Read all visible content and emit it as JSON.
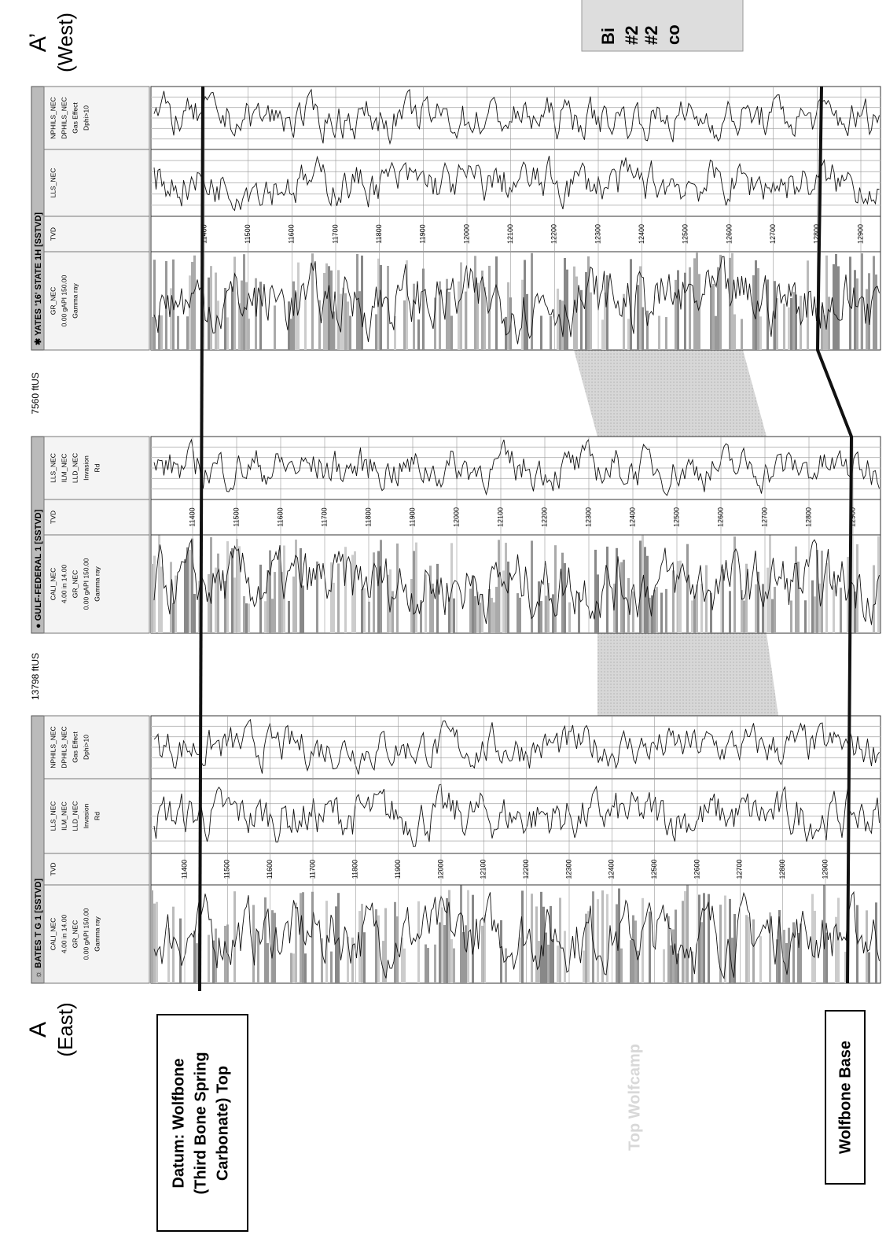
{
  "labels": {
    "left": {
      "letter": "A",
      "side": "(East)"
    },
    "right": {
      "letter": "A’",
      "side": "(West)"
    }
  },
  "distances": [
    "13798 ftUS",
    "7560 ftUS"
  ],
  "wells": [
    {
      "name": "☼ BATES T G 1 [SSTVD]",
      "columns": [
        [
          "CALI_NEC",
          "4.00   in   14.00",
          "GR_NEC",
          "0.00  gAPI  150.00",
          "Gamma ray"
        ],
        [
          "TVD"
        ],
        [
          "LLS_NEC",
          "ILM_NEC",
          "LLD_NEC",
          "Invasion",
          "Rd"
        ],
        [
          "NPHILS_NEC",
          "DPHILS_NEC",
          "Gas Effect",
          "Dphi>10"
        ]
      ],
      "depths": [
        11400,
        11500,
        11600,
        11700,
        11800,
        11900,
        12000,
        12100,
        12200,
        12300,
        12400,
        12500,
        12600,
        12700,
        12800,
        12900
      ]
    },
    {
      "name": "● GULF-FEDERAL 1 [SSTVD]",
      "columns": [
        [
          "CALI_NEC",
          "4.00   in   14.00",
          "GR_NEC",
          "0.00  gAPI  150.00",
          "Gamma ray"
        ],
        [
          "TVD"
        ],
        [
          "LLS_NEC",
          "ILM_NEC",
          "LLD_NEC",
          "Invasion",
          "Rd"
        ]
      ],
      "depths": [
        11400,
        11500,
        11600,
        11700,
        11800,
        11900,
        12000,
        12100,
        12200,
        12300,
        12400,
        12500,
        12600,
        12700,
        12800,
        12900
      ]
    },
    {
      "name": "✱ YATES '16' STATE 1H [SSTVD]",
      "columns": [
        [
          "GR_NEC",
          "0.00  gAPI  150.00",
          "Gamma ray"
        ],
        [
          "TVD"
        ],
        [
          "LLS_NEC"
        ],
        [
          "NPHILS_NEC",
          "DPHILS_NEC",
          "Gas Effect",
          "Dphi>10"
        ]
      ],
      "depths": [
        11400,
        11500,
        11600,
        11700,
        11800,
        11900,
        12000,
        12100,
        12200,
        12300,
        12400,
        12500,
        12600,
        12700,
        12800,
        12900
      ]
    }
  ],
  "callouts": {
    "datum": [
      "Datum: Wolfbone",
      "(Third Bone Spring",
      "Carbonate) Top"
    ],
    "top_wolfcamp": "Top Wolfcamp",
    "wolfbone_base": "Wolfbone Base",
    "cut_box": [
      "Bi",
      "#2",
      "#2",
      "co"
    ]
  }
}
